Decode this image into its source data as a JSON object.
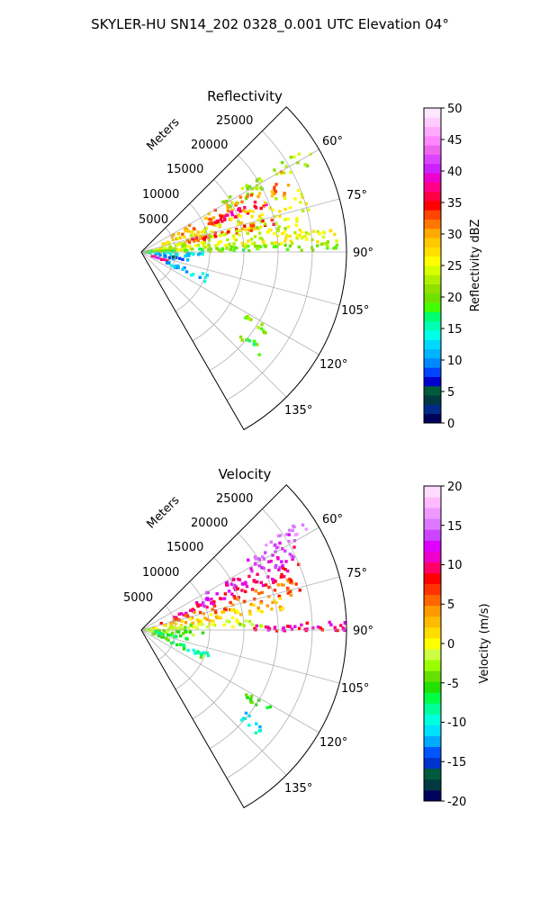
{
  "figure": {
    "suptitle": "SKYLER-HU  SN14_202  0328_0.001 UTC Elevation 04°"
  },
  "panels": [
    {
      "title": "Reflectivity",
      "radial_label": "Meters",
      "range_ticks": [
        "5000",
        "10000",
        "15000",
        "20000",
        "25000"
      ],
      "angle_ticks": [
        "60°",
        "75°",
        "90°",
        "105°",
        "120°",
        "135°"
      ],
      "colorbar": {
        "label": "Reflectivity dBZ",
        "ticks": [
          "0",
          "5",
          "10",
          "15",
          "20",
          "25",
          "30",
          "35",
          "40",
          "45",
          "50"
        ]
      }
    },
    {
      "title": "Velocity",
      "radial_label": "Meters",
      "range_ticks": [
        "5000",
        "10000",
        "15000",
        "20000",
        "25000"
      ],
      "angle_ticks": [
        "60°",
        "75°",
        "90°",
        "105°",
        "120°",
        "135°"
      ],
      "colorbar": {
        "label": "Velocity (m/s)",
        "ticks": [
          "-20",
          "-15",
          "-10",
          "-5",
          "0",
          "5",
          "10",
          "15",
          "20"
        ]
      }
    }
  ],
  "chart_data": [
    {
      "type": "heatmap",
      "projection": "polar-sector",
      "title": "Reflectivity",
      "field": "reflectivity",
      "theta_range_deg": [
        45,
        150
      ],
      "theta_ticks_deg": [
        60,
        75,
        90,
        105,
        120,
        135
      ],
      "r_range_m": [
        0,
        30000
      ],
      "r_ticks_m": [
        5000,
        10000,
        15000,
        20000,
        25000
      ],
      "r_label": "Meters",
      "grid": true,
      "colorbar": {
        "label": "Reflectivity dBZ",
        "vmin": 0,
        "vmax": 50,
        "ticks": [
          0,
          5,
          10,
          15,
          20,
          25,
          30,
          35,
          40,
          45,
          50
        ],
        "colors": [
          "#00035c",
          "#002a8a",
          "#003a40",
          "#005a3c",
          "#0000cc",
          "#0044ff",
          "#0088ff",
          "#00b4ff",
          "#00d8ff",
          "#00ffe8",
          "#00ffb0",
          "#00ff70",
          "#44ff00",
          "#70e000",
          "#90e000",
          "#b0f000",
          "#d8ff00",
          "#ffff00",
          "#ffe000",
          "#ffc800",
          "#ffaa00",
          "#ff7700",
          "#ff4400",
          "#ff0000",
          "#ff0044",
          "#ff0088",
          "#ee00cc",
          "#cc22ff",
          "#dd44ff",
          "#ee66ee",
          "#ff88ff",
          "#ffaaff",
          "#ffccff",
          "#ffe6ff"
        ]
      },
      "echoes": [
        {
          "az": 60,
          "r_start": 14000,
          "r_end": 29000,
          "w": 6,
          "value": 22
        },
        {
          "az": 65,
          "r_start": 5000,
          "r_end": 24000,
          "w": 10,
          "value": 31
        },
        {
          "az": 68,
          "r_start": 10000,
          "r_end": 20000,
          "w": 4,
          "value": 36
        },
        {
          "az": 72,
          "r_start": 3000,
          "r_end": 26000,
          "w": 8,
          "value": 26
        },
        {
          "az": 77,
          "r_start": 6000,
          "r_end": 20000,
          "w": 4,
          "value": 33
        },
        {
          "az": 80,
          "r_start": 2000,
          "r_end": 24000,
          "w": 6,
          "value": 24
        },
        {
          "az": 85,
          "r_start": 1000,
          "r_end": 29000,
          "w": 4,
          "value": 25
        },
        {
          "az": 88,
          "r_start": 500,
          "r_end": 29000,
          "w": 3,
          "value": 20
        },
        {
          "az": 93,
          "r_start": 1000,
          "r_end": 9000,
          "w": 5,
          "value": 13
        },
        {
          "az": 100,
          "r_start": 2000,
          "r_end": 7000,
          "w": 3,
          "value": 8
        },
        {
          "az": 108,
          "r_start": 1500,
          "r_end": 4500,
          "w": 5,
          "value": 38
        },
        {
          "az": 112,
          "r_start": 4000,
          "r_end": 11000,
          "w": 6,
          "value": 12
        },
        {
          "az": 122,
          "r_start": 18000,
          "r_end": 22000,
          "w": 3,
          "value": 20
        },
        {
          "az": 130,
          "r_start": 19000,
          "r_end": 23000,
          "w": 4,
          "value": 18
        }
      ]
    },
    {
      "type": "heatmap",
      "projection": "polar-sector",
      "title": "Velocity",
      "field": "velocity",
      "theta_range_deg": [
        45,
        150
      ],
      "theta_ticks_deg": [
        60,
        75,
        90,
        105,
        120,
        135
      ],
      "r_range_m": [
        0,
        30000
      ],
      "r_ticks_m": [
        5000,
        10000,
        15000,
        20000,
        25000
      ],
      "r_label": "Meters",
      "grid": true,
      "colorbar": {
        "label": "Velocity (m/s)",
        "vmin": -20,
        "vmax": 20,
        "ticks": [
          -20,
          -15,
          -10,
          -5,
          0,
          5,
          10,
          15,
          20
        ],
        "colors": [
          "#00035c",
          "#003a40",
          "#005a3c",
          "#0033cc",
          "#0055ff",
          "#00aaff",
          "#00e0ff",
          "#00ffdd",
          "#00ff99",
          "#00ff44",
          "#22e000",
          "#66e000",
          "#99ff00",
          "#ccff44",
          "#ffff00",
          "#ffdd00",
          "#ffbb00",
          "#ff9900",
          "#ff6600",
          "#ff3300",
          "#ff0000",
          "#ff0066",
          "#ee00cc",
          "#dd00ff",
          "#cc44ff",
          "#dd77ff",
          "#ee99ff",
          "#ffbbff",
          "#ffddff"
        ]
      },
      "echoes": [
        {
          "az": 58,
          "r_start": 18000,
          "r_end": 29000,
          "w": 5,
          "value": 15
        },
        {
          "az": 63,
          "r_start": 9000,
          "r_end": 27000,
          "w": 7,
          "value": 12
        },
        {
          "az": 68,
          "r_start": 5000,
          "r_end": 25000,
          "w": 6,
          "value": 10
        },
        {
          "az": 74,
          "r_start": 3000,
          "r_end": 24000,
          "w": 6,
          "value": 6
        },
        {
          "az": 80,
          "r_start": 1500,
          "r_end": 21000,
          "w": 6,
          "value": 2
        },
        {
          "az": 86,
          "r_start": 500,
          "r_end": 18000,
          "w": 5,
          "value": -2
        },
        {
          "az": 89,
          "r_start": 16000,
          "r_end": 30000,
          "w": 3,
          "value": 10
        },
        {
          "az": 93,
          "r_start": 1000,
          "r_end": 9000,
          "w": 5,
          "value": -4
        },
        {
          "az": 100,
          "r_start": 2000,
          "r_end": 7000,
          "w": 4,
          "value": -7
        },
        {
          "az": 108,
          "r_start": 1500,
          "r_end": 4500,
          "w": 5,
          "value": -5
        },
        {
          "az": 112,
          "r_start": 4000,
          "r_end": 11000,
          "w": 6,
          "value": -7
        },
        {
          "az": 122,
          "r_start": 18000,
          "r_end": 22000,
          "w": 3,
          "value": -6
        },
        {
          "az": 130,
          "r_start": 19000,
          "r_end": 23000,
          "w": 4,
          "value": -10
        }
      ]
    }
  ]
}
